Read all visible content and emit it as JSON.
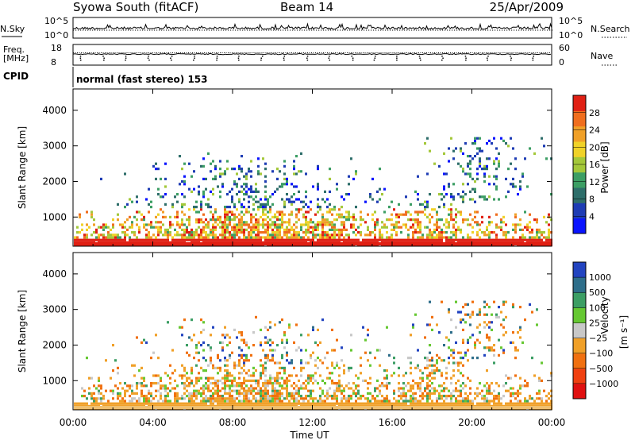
{
  "header": {
    "title": "Syowa South (fitACF)",
    "beam": "Beam 14",
    "date": "25/Apr/2009"
  },
  "chart_data": [
    {
      "type": "line",
      "name_left": "N.Sky",
      "name_right": "N.Search",
      "left_ticks": [
        "10^5",
        "10^0"
      ],
      "right_ticks": [
        "10^5",
        "10^0"
      ]
    },
    {
      "type": "line",
      "name_left_top": "Freq.",
      "name_left_bottom": "[MHz]",
      "name_right": "Nave",
      "left_ticks": [
        "18",
        "8"
      ],
      "right_ticks": [
        "60",
        "0"
      ]
    },
    {
      "type": "table",
      "label": "CPID",
      "value": "normal (fast stereo) 153"
    },
    {
      "type": "heatmap",
      "ylabel": "Slant Range [km]",
      "ylim": [
        180,
        4600
      ],
      "y_ticks": [
        1000,
        2000,
        3000,
        4000
      ],
      "colorbar": {
        "label": "Power [dB]",
        "range": [
          0,
          32
        ],
        "ticks": [
          4,
          8,
          12,
          16,
          20,
          24,
          28
        ],
        "colors": [
          "#0a14ff",
          "#1e3cb4",
          "#2e6e6a",
          "#3c9e64",
          "#a4c83a",
          "#f0d228",
          "#f0a028",
          "#f06e1e",
          "#e02014"
        ]
      }
    },
    {
      "type": "heatmap",
      "ylabel": "Slant Range [km]",
      "ylim": [
        180,
        4600
      ],
      "y_ticks": [
        1000,
        2000,
        3000,
        4000
      ],
      "colorbar": {
        "label": "Velocity",
        "unit": "[m s⁻¹]",
        "ticks": [
          "1000",
          "500",
          "100",
          "25",
          "−25",
          "−100",
          "−500",
          "−1000"
        ],
        "colors": [
          "#2244c0",
          "#2e6e8a",
          "#3c9e64",
          "#66c832",
          "#c8c8c8",
          "#f0a028",
          "#f07010",
          "#f04010",
          "#e01010"
        ]
      }
    }
  ],
  "time_axis": {
    "ticks": [
      "00:00",
      "04:00",
      "08:00",
      "12:00",
      "16:00",
      "20:00",
      "00:00"
    ],
    "label": "Time UT"
  }
}
